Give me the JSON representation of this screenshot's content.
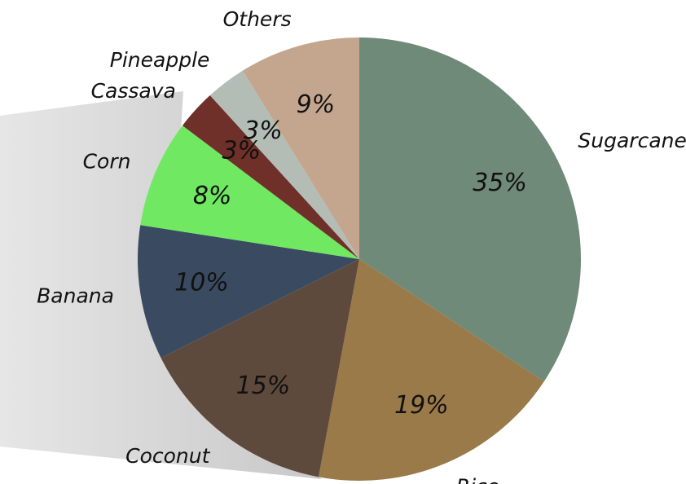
{
  "chart_data": {
    "type": "pie",
    "categories": [
      "Sugarcane",
      "Rice",
      "Coconut",
      "Banana",
      "Corn",
      "Cassava",
      "Pineapple",
      "Others"
    ],
    "values": [
      35,
      19,
      15,
      10,
      8,
      3,
      3,
      9
    ],
    "value_labels": [
      "35%",
      "19%",
      "15%",
      "10%",
      "8%",
      "3%",
      "3%",
      "9%"
    ],
    "colors": [
      "#6f8a78",
      "#9a7a48",
      "#5e4a3c",
      "#3a4a60",
      "#70e862",
      "#6e3028",
      "#b3bdb5",
      "#c4a68e"
    ]
  }
}
